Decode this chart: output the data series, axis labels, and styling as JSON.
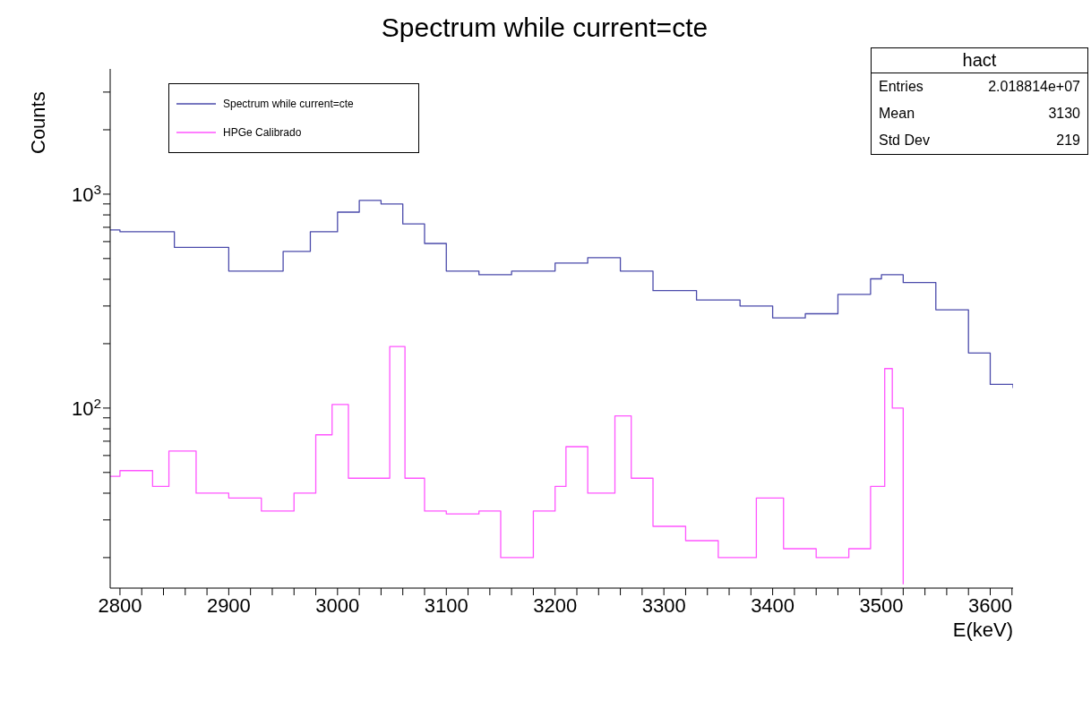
{
  "chart_data": {
    "type": "step",
    "title": "Spectrum while current=cte",
    "xlabel": "E(keV)",
    "ylabel": "Counts",
    "log": "y",
    "grid": false,
    "legend": "top left",
    "marker": "none",
    "xlim": [
      2791,
      3621
    ],
    "ylim": [
      14.4,
      3850
    ],
    "xticks": [
      2800,
      {
        "value": 2820,
        "label": null
      },
      {
        "value": 2840,
        "label": null
      },
      {
        "value": 2860,
        "label": null
      },
      {
        "value": 2880,
        "label": null
      },
      2900,
      {
        "value": 2920,
        "label": null
      },
      {
        "value": 2940,
        "label": null
      },
      {
        "value": 2960,
        "label": null
      },
      {
        "value": 2980,
        "label": null
      },
      3000,
      {
        "value": 3020,
        "label": null
      },
      {
        "value": 3040,
        "label": null
      },
      {
        "value": 3060,
        "label": null
      },
      {
        "value": 3080,
        "label": null
      },
      3100,
      {
        "value": 3120,
        "label": null
      },
      {
        "value": 3140,
        "label": null
      },
      {
        "value": 3160,
        "label": null
      },
      {
        "value": 3180,
        "label": null
      },
      3200,
      {
        "value": 3220,
        "label": null
      },
      {
        "value": 3240,
        "label": null
      },
      {
        "value": 3260,
        "label": null
      },
      {
        "value": 3280,
        "label": null
      },
      3300,
      {
        "value": 3320,
        "label": null
      },
      {
        "value": 3340,
        "label": null
      },
      {
        "value": 3360,
        "label": null
      },
      {
        "value": 3380,
        "label": null
      },
      3400,
      {
        "value": 3420,
        "label": null
      },
      {
        "value": 3440,
        "label": null
      },
      {
        "value": 3460,
        "label": null
      },
      {
        "value": 3480,
        "label": null
      },
      3500,
      {
        "value": 3520,
        "label": null
      },
      {
        "value": 3540,
        "label": null
      },
      {
        "value": 3560,
        "label": null
      },
      {
        "value": 3580,
        "label": null
      },
      3600,
      {
        "value": 3620,
        "label": null
      }
    ],
    "yticks": [
      {
        "value": 20,
        "label": null
      },
      {
        "value": 30,
        "label": null
      },
      {
        "value": 40,
        "label": null
      },
      {
        "value": 50,
        "label": null
      },
      {
        "value": 60,
        "label": null
      },
      {
        "value": 70,
        "label": null
      },
      {
        "value": 80,
        "label": null
      },
      {
        "value": 90,
        "label": null
      },
      {
        "value": 100,
        "label": "10$^{2}$"
      },
      {
        "value": 200,
        "label": null
      },
      {
        "value": 300,
        "label": null
      },
      {
        "value": 400,
        "label": null
      },
      {
        "value": 500,
        "label": null
      },
      {
        "value": 600,
        "label": null
      },
      {
        "value": 700,
        "label": null
      },
      {
        "value": 800,
        "label": null
      },
      {
        "value": 900,
        "label": null
      },
      {
        "value": 1000,
        "label": "10$^{3}$"
      },
      {
        "value": 2000,
        "label": null
      },
      {
        "value": 3000,
        "label": null
      }
    ],
    "annotations": [
      "hact",
      "Entries",
      "2.018814e+07",
      "Mean",
      "3130",
      "Std Dev",
      "219"
    ],
    "series": [
      {
        "name": "Spectrum while current=cte",
        "color": "#4b4bab",
        "x": [
          2791,
          2800,
          2850,
          2900,
          2950,
          2975,
          3000,
          3020,
          3040,
          3060,
          3080,
          3100,
          3130,
          3160,
          3200,
          3230,
          3260,
          3290,
          3330,
          3370,
          3400,
          3430,
          3460,
          3490,
          3500,
          3520,
          3550,
          3580,
          3600,
          3621
        ],
        "values": [
          680,
          667,
          564,
          437,
          540,
          667,
          824,
          935,
          900,
          726,
          588,
          437,
          420,
          437,
          476,
          505,
          437,
          354,
          320,
          300,
          264,
          276,
          340,
          402,
          420,
          386,
          288,
          181,
          129,
          124
        ]
      },
      {
        "name": "HPGe Calibrado",
        "color": "#ff55ff",
        "x": [
          2791,
          2800,
          2830,
          2845,
          2870,
          2900,
          2930,
          2960,
          2980,
          2995,
          3010,
          3030,
          3048,
          3062,
          3080,
          3100,
          3130,
          3150,
          3180,
          3200,
          3210,
          3230,
          3255,
          3270,
          3290,
          3320,
          3350,
          3385,
          3410,
          3440,
          3470,
          3490,
          3503,
          3510,
          3520
        ],
        "values": [
          48,
          51,
          43,
          63,
          40,
          38,
          33,
          40,
          75,
          104,
          47,
          47,
          194,
          47,
          33,
          32,
          33,
          20,
          33,
          43,
          66,
          40,
          92,
          47,
          28,
          24,
          20,
          38,
          22,
          20,
          22,
          43,
          153,
          100,
          15
        ]
      }
    ]
  }
}
